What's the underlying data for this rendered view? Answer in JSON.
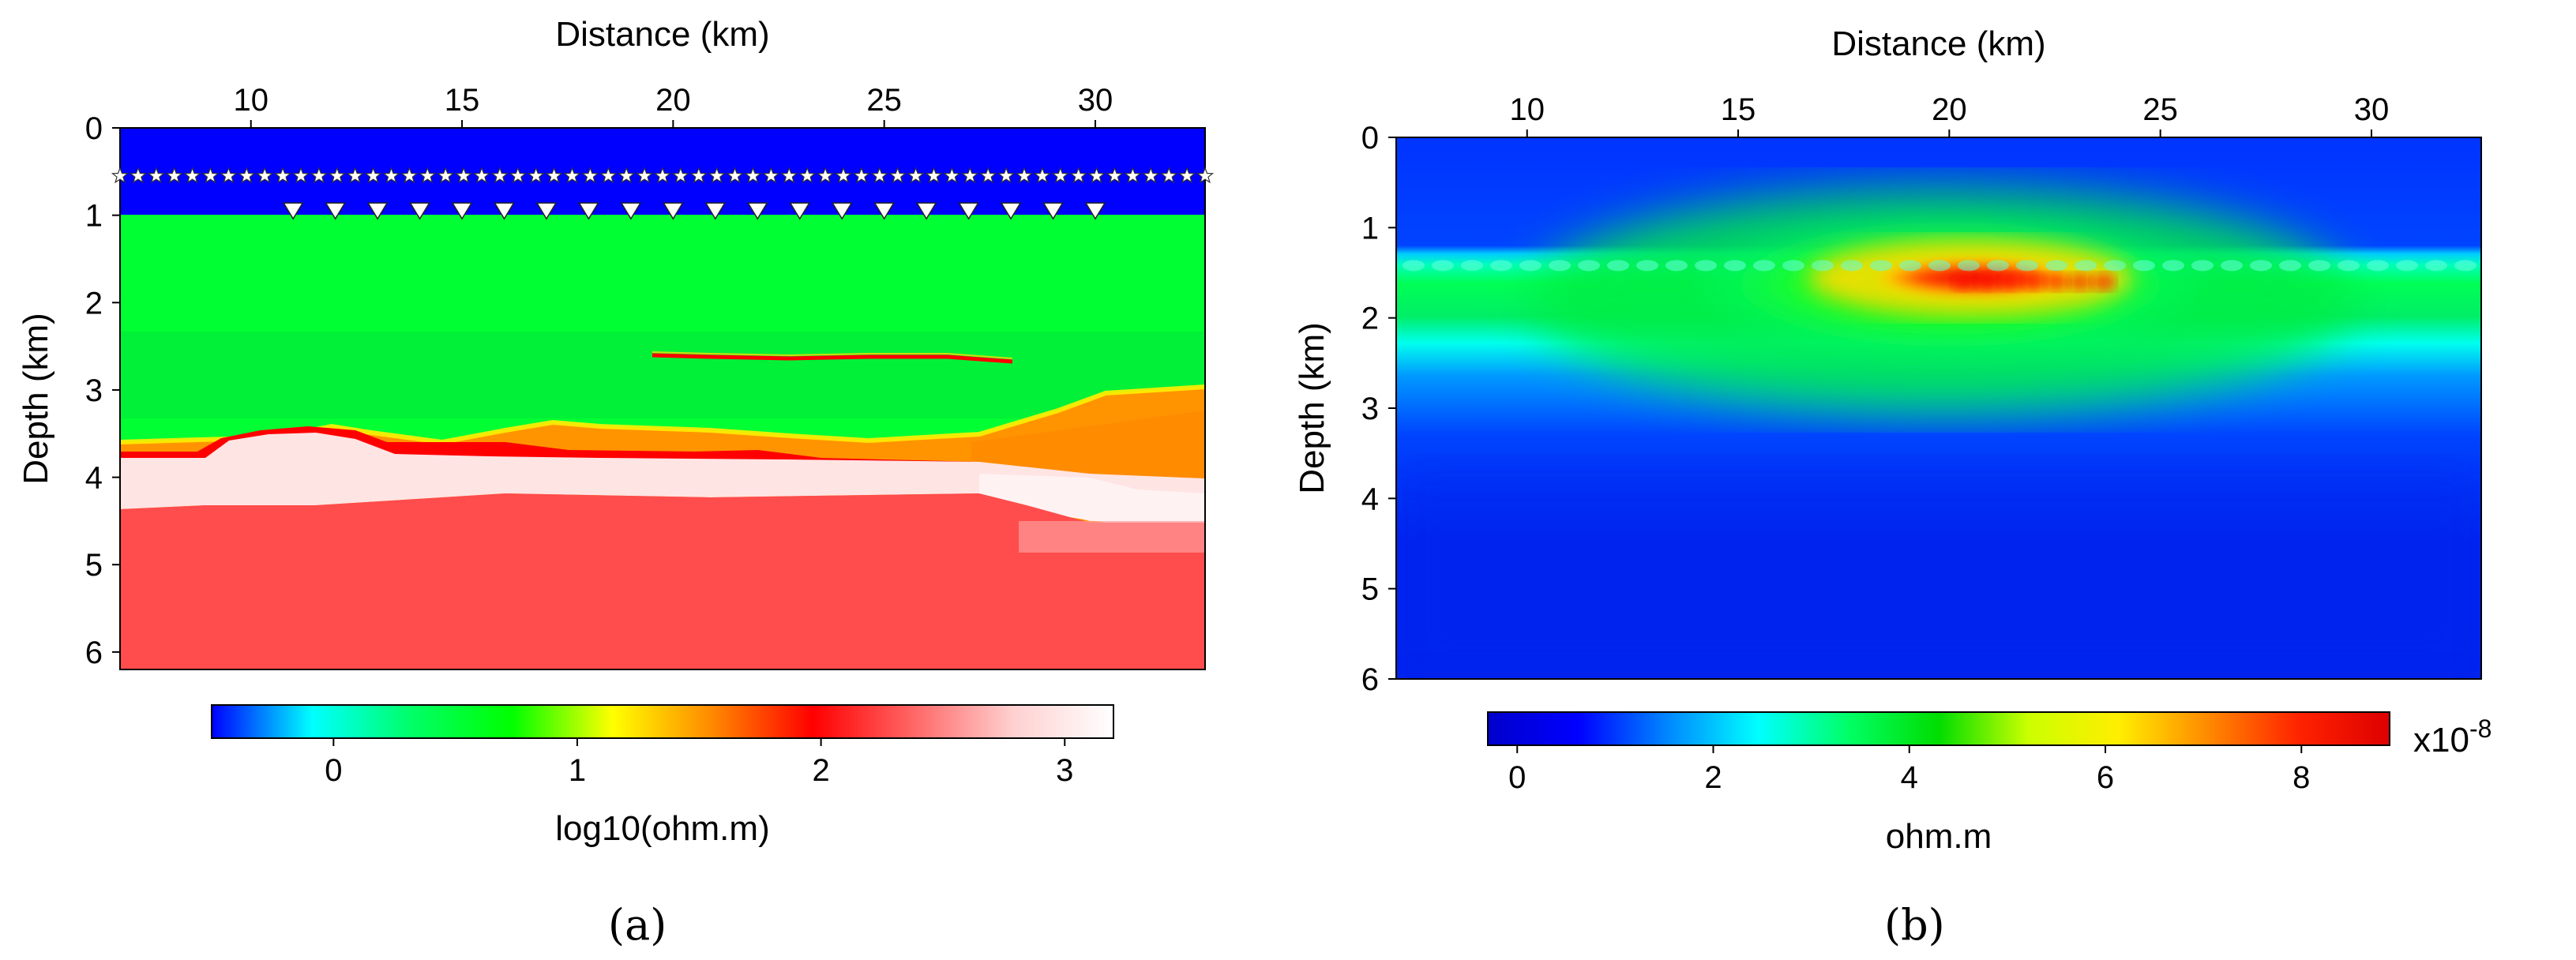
{
  "chart_data": [
    {
      "panel_label": "(a)",
      "type": "heatmap",
      "title": "",
      "xlabel": "Distance (km)",
      "ylabel": "Depth (km)",
      "xlim": [
        6.9,
        32.6
      ],
      "ylim": [
        6.2,
        0.0
      ],
      "xticks": [
        10,
        15,
        20,
        25,
        30
      ],
      "yticks": [
        0,
        1,
        2,
        3,
        4,
        5,
        6
      ],
      "colorbar": {
        "label": "log10(ohm.m)",
        "range": [
          -0.5,
          3.2
        ],
        "ticks": [
          0,
          1,
          2,
          3
        ],
        "colormap": [
          "#0000ff",
          "#00ffff",
          "#00ff66",
          "#00ff00",
          "#ffff00",
          "#ff8800",
          "#ff0000",
          "#ff6666",
          "#ffd0d0",
          "#ffffff"
        ]
      },
      "layers": [
        {
          "name": "air",
          "color": "#0000ff",
          "depth_top": 0.0,
          "depth_bottom": 0.98
        },
        {
          "name": "sediment",
          "color": "#00ff33",
          "depth_top": 0.98,
          "depth_bottom": 3.4
        },
        {
          "name": "resistive basement top",
          "color": "#ff8c00",
          "depth_top": 3.3,
          "depth_bottom": 3.8
        },
        {
          "name": "high-resistivity layer",
          "color": "#ffe6e6",
          "depth_top": 3.8,
          "depth_bottom": 4.3
        },
        {
          "name": "basement",
          "color": "#ff4c4c",
          "depth_top": 4.3,
          "depth_bottom": 6.2
        }
      ],
      "target": {
        "x_start": 19.5,
        "x_end": 28.3,
        "depth": 2.62
      },
      "sources": {
        "symbol": "star",
        "depth": 0.55,
        "x_start": 6.9,
        "x_end": 32.6,
        "count": 61
      },
      "receivers": {
        "symbol": "inverted-triangle",
        "depth": 0.95,
        "x_start": 11,
        "x_end": 30,
        "count": 20
      }
    },
    {
      "panel_label": "(b)",
      "type": "heatmap",
      "title": "",
      "xlabel": "Distance (km)",
      "ylabel": "Depth (km)",
      "xlim": [
        6.9,
        32.6
      ],
      "ylim": [
        6.0,
        0.0
      ],
      "xticks": [
        10,
        15,
        20,
        25,
        30
      ],
      "yticks": [
        0,
        1,
        2,
        3,
        4,
        5,
        6
      ],
      "colorbar": {
        "label": "ohm.m",
        "scale_label": "x10",
        "scale_exponent": "-8",
        "range": [
          -0.3,
          8.9
        ],
        "ticks": [
          0,
          2,
          4,
          6,
          8
        ],
        "colormap": [
          "#0000cc",
          "#0000ff",
          "#0088ff",
          "#00ffff",
          "#00ff66",
          "#00dd00",
          "#ccff00",
          "#ffee00",
          "#ff8800",
          "#ff2200",
          "#dd0000"
        ]
      },
      "anomaly": {
        "x_center": 22.0,
        "depth_center": 1.6,
        "peak_value": 8.5
      }
    }
  ]
}
